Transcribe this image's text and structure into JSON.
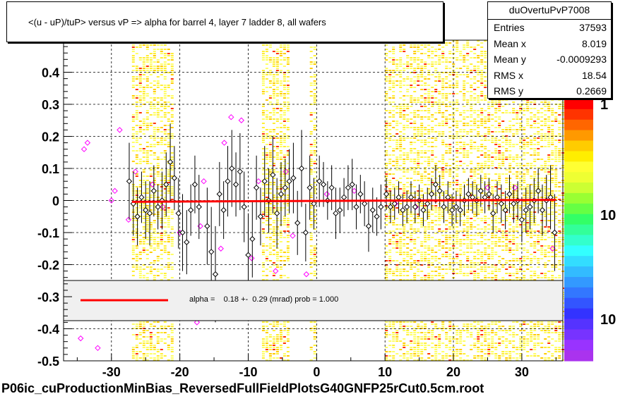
{
  "title": "<(u - uP)/tuP>  versus   vP =>  alpha for barrel 4, layer 7 ladder 8, all wafers",
  "stats": {
    "name": "duOvertuPvP7008",
    "rows": [
      {
        "key": "Entries",
        "value": "37593"
      },
      {
        "key": "Mean x",
        "value": "8.019"
      },
      {
        "key": "Mean y",
        "value": "-0.0009293"
      },
      {
        "key": "RMS x",
        "value": "18.54"
      },
      {
        "key": "RMS y",
        "value": "0.2669"
      }
    ]
  },
  "fit_text": "alpha =    0.18 +-  0.29 (mrad) prob = 1.000",
  "footer": "P06ic_cuProductionMinBias_ReversedFullFieldPlotsG40GNFP25rCut0.5cm.root",
  "colors": {
    "fit_line": "#ff0000",
    "profile_point": "#000000",
    "outlier_point": "#ff00ff"
  },
  "chart_data": {
    "type": "heatmap",
    "overlay": "profile",
    "xlim": [
      -37,
      36
    ],
    "ylim": [
      -0.5,
      0.5
    ],
    "grid": true,
    "x_ticks": [
      -30,
      -20,
      -10,
      0,
      10,
      20,
      30
    ],
    "y_ticks": [
      -0.5,
      -0.4,
      -0.3,
      -0.2,
      -0.1,
      0,
      0.1,
      0.2,
      0.3,
      0.4
    ],
    "y_tick_labels": [
      "-0.5",
      "-0.4",
      "-0.3",
      "-0.2",
      "-0.1",
      "0",
      "0.1",
      "0.2",
      "0.3",
      "0.4"
    ],
    "x_tick_labels": [
      "-30",
      "-20",
      "-10",
      "0",
      "10",
      "20",
      "30"
    ],
    "palette_labels": [
      "1",
      "10",
      "10"
    ],
    "fit_line": {
      "x": [
        -27,
        35
      ],
      "y": [
        -0.004,
        0.002
      ]
    },
    "heat_bands": [
      [
        -27,
        -21
      ],
      [
        -8,
        -4
      ],
      [
        -1,
        0
      ],
      [
        10,
        36
      ]
    ],
    "profile_points": [
      {
        "x": -27.4,
        "y": 0.06,
        "err": 0.12
      },
      {
        "x": -26.8,
        "y": -0.01,
        "err": 0.1
      },
      {
        "x": -26.2,
        "y": -0.05,
        "err": 0.09
      },
      {
        "x": -25.6,
        "y": 0.01,
        "err": 0.08
      },
      {
        "x": -25.0,
        "y": -0.03,
        "err": 0.09
      },
      {
        "x": -24.4,
        "y": -0.04,
        "err": 0.1
      },
      {
        "x": -23.8,
        "y": 0.03,
        "err": 0.08
      },
      {
        "x": -23.2,
        "y": -0.02,
        "err": 0.07
      },
      {
        "x": -22.6,
        "y": 0.0,
        "err": 0.09
      },
      {
        "x": -22.0,
        "y": 0.05,
        "err": 0.1
      },
      {
        "x": -21.4,
        "y": 0.12,
        "err": 0.12
      },
      {
        "x": -20.8,
        "y": 0.07,
        "err": 0.1
      },
      {
        "x": -20.2,
        "y": -0.04,
        "err": 0.11
      },
      {
        "x": -19.6,
        "y": -0.1,
        "err": 0.12
      },
      {
        "x": -19.0,
        "y": -0.13,
        "err": 0.1
      },
      {
        "x": -18.4,
        "y": -0.03,
        "err": 0.08
      },
      {
        "x": -17.8,
        "y": 0.05,
        "err": 0.09
      },
      {
        "x": -17.2,
        "y": -0.02,
        "err": 0.1
      },
      {
        "x": -16.0,
        "y": -0.08,
        "err": 0.12
      },
      {
        "x": -15.4,
        "y": -0.16,
        "err": 0.14
      },
      {
        "x": -14.8,
        "y": -0.23,
        "err": 0.15
      },
      {
        "x": -14.2,
        "y": 0.02,
        "err": 0.1
      },
      {
        "x": -13.6,
        "y": -0.03,
        "err": 0.09
      },
      {
        "x": -13.0,
        "y": 0.06,
        "err": 0.11
      },
      {
        "x": -12.4,
        "y": 0.1,
        "err": 0.12
      },
      {
        "x": -11.8,
        "y": 0.05,
        "err": 0.1
      },
      {
        "x": -11.2,
        "y": 0.09,
        "err": 0.12
      },
      {
        "x": -10.6,
        "y": -0.02,
        "err": 0.11
      },
      {
        "x": -10.0,
        "y": -0.17,
        "err": 0.13
      },
      {
        "x": -9.4,
        "y": -0.12,
        "err": 0.12
      },
      {
        "x": -8.8,
        "y": 0.04,
        "err": 0.1
      },
      {
        "x": -8.2,
        "y": -0.05,
        "err": 0.09
      },
      {
        "x": -7.6,
        "y": 0.06,
        "err": 0.11
      },
      {
        "x": -7.0,
        "y": 0.0,
        "err": 0.1
      },
      {
        "x": -6.4,
        "y": 0.08,
        "err": 0.12
      },
      {
        "x": -5.8,
        "y": -0.04,
        "err": 0.11
      },
      {
        "x": -5.2,
        "y": 0.02,
        "err": 0.1
      },
      {
        "x": -4.6,
        "y": 0.04,
        "err": 0.09
      },
      {
        "x": -4.0,
        "y": 0.06,
        "err": 0.1
      },
      {
        "x": -3.4,
        "y": 0.07,
        "err": 0.11
      },
      {
        "x": -2.8,
        "y": -0.07,
        "err": 0.1
      },
      {
        "x": -2.2,
        "y": 0.1,
        "err": 0.12
      },
      {
        "x": -1.6,
        "y": -0.1,
        "err": 0.09
      },
      {
        "x": -1.0,
        "y": 0.04,
        "err": 0.1
      },
      {
        "x": -0.4,
        "y": -0.01,
        "err": 0.08
      },
      {
        "x": 0.4,
        "y": 0.06,
        "err": 0.08
      },
      {
        "x": 1.0,
        "y": 0.05,
        "err": 0.07
      },
      {
        "x": 1.6,
        "y": 0.0,
        "err": 0.06
      },
      {
        "x": 2.2,
        "y": 0.04,
        "err": 0.07
      },
      {
        "x": 2.8,
        "y": -0.04,
        "err": 0.08
      },
      {
        "x": 3.4,
        "y": -0.03,
        "err": 0.07
      },
      {
        "x": 4.0,
        "y": 0.01,
        "err": 0.06
      },
      {
        "x": 4.6,
        "y": 0.04,
        "err": 0.07
      },
      {
        "x": 5.2,
        "y": 0.05,
        "err": 0.08
      },
      {
        "x": 5.8,
        "y": -0.02,
        "err": 0.07
      },
      {
        "x": 6.4,
        "y": 0.02,
        "err": 0.06
      },
      {
        "x": 7.0,
        "y": -0.01,
        "err": 0.07
      },
      {
        "x": 7.6,
        "y": -0.08,
        "err": 0.08
      },
      {
        "x": 8.2,
        "y": -0.03,
        "err": 0.07
      },
      {
        "x": 8.8,
        "y": -0.05,
        "err": 0.06
      },
      {
        "x": 9.4,
        "y": -0.02,
        "err": 0.07
      },
      {
        "x": 10.2,
        "y": 0.02,
        "err": 0.05
      },
      {
        "x": 10.8,
        "y": -0.02,
        "err": 0.05
      },
      {
        "x": 11.4,
        "y": -0.01,
        "err": 0.05
      },
      {
        "x": 12.0,
        "y": 0.01,
        "err": 0.05
      },
      {
        "x": 12.6,
        "y": -0.03,
        "err": 0.05
      },
      {
        "x": 13.2,
        "y": -0.02,
        "err": 0.05
      },
      {
        "x": 13.8,
        "y": 0.01,
        "err": 0.05
      },
      {
        "x": 14.4,
        "y": -0.02,
        "err": 0.05
      },
      {
        "x": 15.0,
        "y": 0.0,
        "err": 0.05
      },
      {
        "x": 15.6,
        "y": -0.03,
        "err": 0.05
      },
      {
        "x": 16.2,
        "y": -0.01,
        "err": 0.05
      },
      {
        "x": 16.8,
        "y": 0.02,
        "err": 0.05
      },
      {
        "x": 17.4,
        "y": 0.05,
        "err": 0.06
      },
      {
        "x": 18.0,
        "y": 0.03,
        "err": 0.05
      },
      {
        "x": 18.6,
        "y": -0.02,
        "err": 0.05
      },
      {
        "x": 19.2,
        "y": 0.01,
        "err": 0.05
      },
      {
        "x": 19.8,
        "y": -0.03,
        "err": 0.05
      },
      {
        "x": 20.4,
        "y": -0.02,
        "err": 0.05
      },
      {
        "x": 21.0,
        "y": -0.03,
        "err": 0.05
      },
      {
        "x": 21.6,
        "y": 0.0,
        "err": 0.05
      },
      {
        "x": 22.2,
        "y": 0.02,
        "err": 0.05
      },
      {
        "x": 22.8,
        "y": 0.01,
        "err": 0.05
      },
      {
        "x": 23.4,
        "y": 0.0,
        "err": 0.05
      },
      {
        "x": 24.0,
        "y": 0.03,
        "err": 0.05
      },
      {
        "x": 24.6,
        "y": 0.01,
        "err": 0.05
      },
      {
        "x": 25.2,
        "y": 0.02,
        "err": 0.05
      },
      {
        "x": 25.8,
        "y": -0.04,
        "err": 0.06
      },
      {
        "x": 26.4,
        "y": 0.01,
        "err": 0.05
      },
      {
        "x": 27.0,
        "y": -0.01,
        "err": 0.06
      },
      {
        "x": 27.6,
        "y": -0.03,
        "err": 0.06
      },
      {
        "x": 28.2,
        "y": 0.02,
        "err": 0.06
      },
      {
        "x": 28.8,
        "y": -0.01,
        "err": 0.06
      },
      {
        "x": 29.4,
        "y": 0.0,
        "err": 0.06
      },
      {
        "x": 30.0,
        "y": -0.06,
        "err": 0.07
      },
      {
        "x": 30.6,
        "y": -0.03,
        "err": 0.07
      },
      {
        "x": 31.2,
        "y": -0.02,
        "err": 0.07
      },
      {
        "x": 31.8,
        "y": 0.0,
        "err": 0.07
      },
      {
        "x": 32.4,
        "y": 0.03,
        "err": 0.07
      },
      {
        "x": 33.0,
        "y": -0.03,
        "err": 0.08
      },
      {
        "x": 33.6,
        "y": 0.0,
        "err": 0.08
      },
      {
        "x": 34.2,
        "y": 0.01,
        "err": 0.1
      },
      {
        "x": 34.8,
        "y": -0.1,
        "err": 0.12
      }
    ],
    "outlier_points": [
      {
        "x": -34.0,
        "y": 0.16
      },
      {
        "x": -33.5,
        "y": 0.18
      },
      {
        "x": -30.0,
        "y": 0.0
      },
      {
        "x": -29.5,
        "y": 0.03
      },
      {
        "x": -28.8,
        "y": 0.22
      },
      {
        "x": -27.5,
        "y": -0.06
      },
      {
        "x": -26.5,
        "y": 0.09
      },
      {
        "x": -24.0,
        "y": 0.05
      },
      {
        "x": -22.5,
        "y": -0.02
      },
      {
        "x": -20.0,
        "y": -0.1
      },
      {
        "x": -17.0,
        "y": -0.08
      },
      {
        "x": -16.5,
        "y": 0.06
      },
      {
        "x": -14.0,
        "y": -0.15
      },
      {
        "x": -13.5,
        "y": 0.18
      },
      {
        "x": -12.5,
        "y": 0.26
      },
      {
        "x": -11.0,
        "y": 0.25
      },
      {
        "x": -9.5,
        "y": -0.18
      },
      {
        "x": -8.5,
        "y": 0.06
      },
      {
        "x": -6.0,
        "y": -0.22
      },
      {
        "x": -4.5,
        "y": 0.09
      },
      {
        "x": -3.5,
        "y": -0.11
      },
      {
        "x": -1.5,
        "y": -0.23
      },
      {
        "x": 1.5,
        "y": 0.02
      },
      {
        "x": 5.5,
        "y": 0.03
      },
      {
        "x": 11.5,
        "y": -0.01
      },
      {
        "x": 14.5,
        "y": -0.02
      },
      {
        "x": 25.0,
        "y": 0.04
      },
      {
        "x": 29.0,
        "y": 0.04
      },
      {
        "x": 34.5,
        "y": -0.15
      },
      {
        "x": -34.5,
        "y": -0.43
      },
      {
        "x": -32.0,
        "y": -0.46
      },
      {
        "x": -17.5,
        "y": -0.38
      }
    ]
  }
}
